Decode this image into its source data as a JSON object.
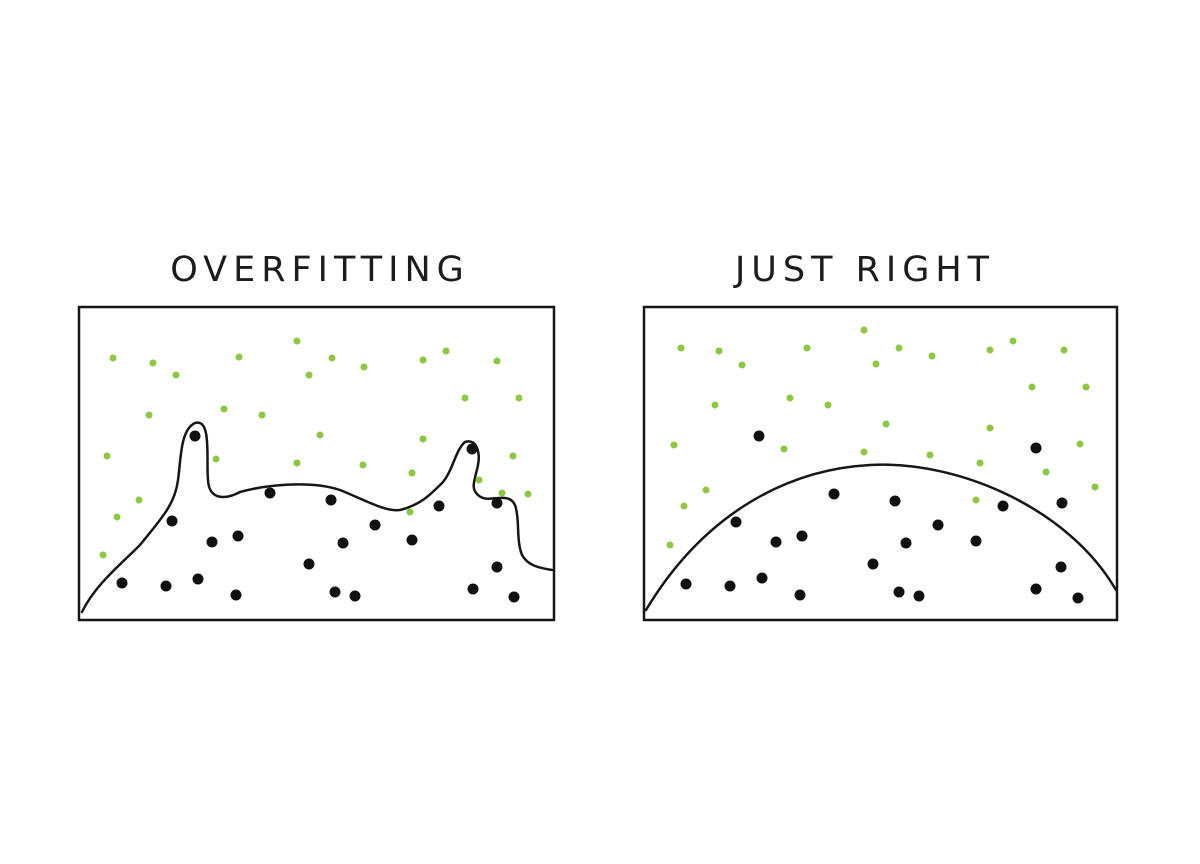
{
  "panels": [
    {
      "title": "OVERFITTING",
      "boundary": "wiggly",
      "colors": {
        "class_a": "#8dc63f",
        "class_b": "#111111",
        "line": "#111111"
      }
    },
    {
      "title": "JUST RIGHT",
      "boundary": "smooth-arc",
      "colors": {
        "class_a": "#8dc63f",
        "class_b": "#111111",
        "line": "#111111"
      }
    }
  ]
}
